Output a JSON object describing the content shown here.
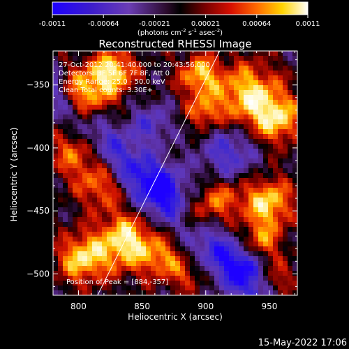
{
  "colorbar": {
    "ticks": [
      "-0.0011",
      "-0.00064",
      "-0.00021",
      "0.00021",
      "0.00064",
      "0.0011"
    ],
    "unit_parts": [
      "(photons cm",
      "-2",
      " s",
      "-1",
      " asec",
      "-2",
      ")"
    ]
  },
  "chart_data": {
    "type": "heatmap",
    "title": "Reconstructed RHESSI Image",
    "xlabel": "Heliocentric X (arcsec)",
    "ylabel": "Heliocentric Y (arcsec)",
    "xlim": [
      780,
      972
    ],
    "ylim": [
      -517,
      -323
    ],
    "xticks": [
      "800",
      "850",
      "900",
      "950"
    ],
    "yticks": [
      "-350",
      "-400",
      "-450",
      "-500"
    ],
    "colormap": "RHESSI red-temperature (black-red-yellow-white positive, purple-blue negative)",
    "value_range": [
      -0.0011,
      0.0011
    ],
    "limb_line": {
      "x": [
        815,
        911
      ],
      "y": [
        -517,
        -323
      ]
    },
    "annotations": [
      "27-Oct-2012 20:41:40.000 to 20:43:56.000",
      "Detectors: 3F 5F 6F 7F 8F, Att 0",
      "Energy Range: 25.0 - 50.0 keV",
      "Clean    Total counts: 3.30E+"
    ],
    "peak_label": "Position of Peak = [884,-357]",
    "peak": [
      884,
      -357
    ]
  },
  "footer": {
    "date": "15-May-2022 17:06"
  }
}
